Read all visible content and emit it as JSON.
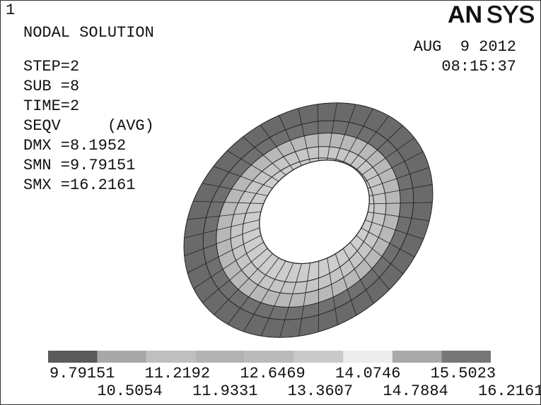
{
  "window_number": "1",
  "logo_bold": "AN",
  "logo_light": "SYS",
  "title": "NODAL SOLUTION",
  "date": "AUG  9 2012",
  "time": "08:15:37",
  "info": [
    "STEP=2",
    "SUB =8",
    "TIME=2",
    "SEQV     (AVG)",
    "DMX =8.1952",
    "SMN =9.79151",
    "SMX =16.2161"
  ],
  "legend": {
    "colors": [
      "#5a5a5a",
      "#a8a8a8",
      "#bfbfbf",
      "#b3b3b3",
      "#bababa",
      "#c9c9c9",
      "#ececec",
      "#a9a9a9",
      "#777777"
    ],
    "labels": [
      "9.79151",
      "10.5054",
      "11.2192",
      "11.9331",
      "12.6469",
      "13.3607",
      "14.0746",
      "14.7884",
      "15.5023",
      "16.2161"
    ]
  }
}
